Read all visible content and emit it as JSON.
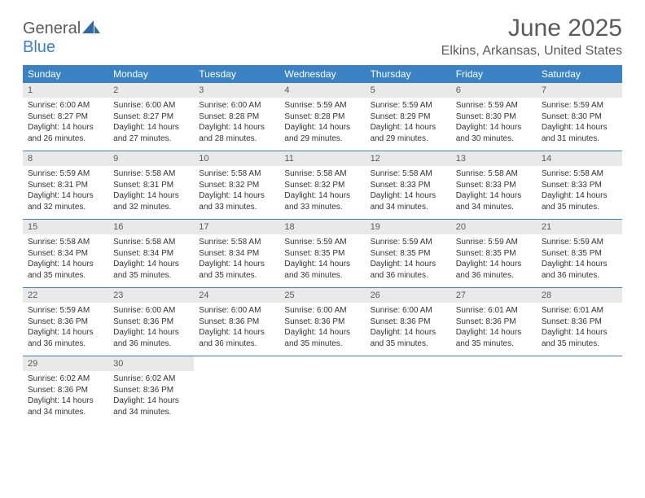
{
  "brand": {
    "part1": "General",
    "part2": "Blue"
  },
  "title": "June 2025",
  "location": "Elkins, Arkansas, United States",
  "colors": {
    "header_bg": "#3b82c4",
    "header_fg": "#ffffff",
    "daynum_bg": "#e9e9e9",
    "text_muted": "#5a5a5a",
    "text_body": "#333333",
    "page_bg": "#ffffff",
    "rule": "#3b82c4"
  },
  "typography": {
    "title_fontsize_pt": 22,
    "location_fontsize_pt": 12,
    "dow_fontsize_pt": 9,
    "daynum_fontsize_pt": 8,
    "body_fontsize_pt": 7.5,
    "font_family": "Arial"
  },
  "layout": {
    "columns": 7,
    "weeks": 5,
    "cell_width_pct": 14.28
  },
  "dow": [
    "Sunday",
    "Monday",
    "Tuesday",
    "Wednesday",
    "Thursday",
    "Friday",
    "Saturday"
  ],
  "weeks": [
    [
      {
        "n": "1",
        "sr": "Sunrise: 6:00 AM",
        "ss": "Sunset: 8:27 PM",
        "d1": "Daylight: 14 hours",
        "d2": "and 26 minutes."
      },
      {
        "n": "2",
        "sr": "Sunrise: 6:00 AM",
        "ss": "Sunset: 8:27 PM",
        "d1": "Daylight: 14 hours",
        "d2": "and 27 minutes."
      },
      {
        "n": "3",
        "sr": "Sunrise: 6:00 AM",
        "ss": "Sunset: 8:28 PM",
        "d1": "Daylight: 14 hours",
        "d2": "and 28 minutes."
      },
      {
        "n": "4",
        "sr": "Sunrise: 5:59 AM",
        "ss": "Sunset: 8:28 PM",
        "d1": "Daylight: 14 hours",
        "d2": "and 29 minutes."
      },
      {
        "n": "5",
        "sr": "Sunrise: 5:59 AM",
        "ss": "Sunset: 8:29 PM",
        "d1": "Daylight: 14 hours",
        "d2": "and 29 minutes."
      },
      {
        "n": "6",
        "sr": "Sunrise: 5:59 AM",
        "ss": "Sunset: 8:30 PM",
        "d1": "Daylight: 14 hours",
        "d2": "and 30 minutes."
      },
      {
        "n": "7",
        "sr": "Sunrise: 5:59 AM",
        "ss": "Sunset: 8:30 PM",
        "d1": "Daylight: 14 hours",
        "d2": "and 31 minutes."
      }
    ],
    [
      {
        "n": "8",
        "sr": "Sunrise: 5:59 AM",
        "ss": "Sunset: 8:31 PM",
        "d1": "Daylight: 14 hours",
        "d2": "and 32 minutes."
      },
      {
        "n": "9",
        "sr": "Sunrise: 5:58 AM",
        "ss": "Sunset: 8:31 PM",
        "d1": "Daylight: 14 hours",
        "d2": "and 32 minutes."
      },
      {
        "n": "10",
        "sr": "Sunrise: 5:58 AM",
        "ss": "Sunset: 8:32 PM",
        "d1": "Daylight: 14 hours",
        "d2": "and 33 minutes."
      },
      {
        "n": "11",
        "sr": "Sunrise: 5:58 AM",
        "ss": "Sunset: 8:32 PM",
        "d1": "Daylight: 14 hours",
        "d2": "and 33 minutes."
      },
      {
        "n": "12",
        "sr": "Sunrise: 5:58 AM",
        "ss": "Sunset: 8:33 PM",
        "d1": "Daylight: 14 hours",
        "d2": "and 34 minutes."
      },
      {
        "n": "13",
        "sr": "Sunrise: 5:58 AM",
        "ss": "Sunset: 8:33 PM",
        "d1": "Daylight: 14 hours",
        "d2": "and 34 minutes."
      },
      {
        "n": "14",
        "sr": "Sunrise: 5:58 AM",
        "ss": "Sunset: 8:33 PM",
        "d1": "Daylight: 14 hours",
        "d2": "and 35 minutes."
      }
    ],
    [
      {
        "n": "15",
        "sr": "Sunrise: 5:58 AM",
        "ss": "Sunset: 8:34 PM",
        "d1": "Daylight: 14 hours",
        "d2": "and 35 minutes."
      },
      {
        "n": "16",
        "sr": "Sunrise: 5:58 AM",
        "ss": "Sunset: 8:34 PM",
        "d1": "Daylight: 14 hours",
        "d2": "and 35 minutes."
      },
      {
        "n": "17",
        "sr": "Sunrise: 5:58 AM",
        "ss": "Sunset: 8:34 PM",
        "d1": "Daylight: 14 hours",
        "d2": "and 35 minutes."
      },
      {
        "n": "18",
        "sr": "Sunrise: 5:59 AM",
        "ss": "Sunset: 8:35 PM",
        "d1": "Daylight: 14 hours",
        "d2": "and 36 minutes."
      },
      {
        "n": "19",
        "sr": "Sunrise: 5:59 AM",
        "ss": "Sunset: 8:35 PM",
        "d1": "Daylight: 14 hours",
        "d2": "and 36 minutes."
      },
      {
        "n": "20",
        "sr": "Sunrise: 5:59 AM",
        "ss": "Sunset: 8:35 PM",
        "d1": "Daylight: 14 hours",
        "d2": "and 36 minutes."
      },
      {
        "n": "21",
        "sr": "Sunrise: 5:59 AM",
        "ss": "Sunset: 8:35 PM",
        "d1": "Daylight: 14 hours",
        "d2": "and 36 minutes."
      }
    ],
    [
      {
        "n": "22",
        "sr": "Sunrise: 5:59 AM",
        "ss": "Sunset: 8:36 PM",
        "d1": "Daylight: 14 hours",
        "d2": "and 36 minutes."
      },
      {
        "n": "23",
        "sr": "Sunrise: 6:00 AM",
        "ss": "Sunset: 8:36 PM",
        "d1": "Daylight: 14 hours",
        "d2": "and 36 minutes."
      },
      {
        "n": "24",
        "sr": "Sunrise: 6:00 AM",
        "ss": "Sunset: 8:36 PM",
        "d1": "Daylight: 14 hours",
        "d2": "and 36 minutes."
      },
      {
        "n": "25",
        "sr": "Sunrise: 6:00 AM",
        "ss": "Sunset: 8:36 PM",
        "d1": "Daylight: 14 hours",
        "d2": "and 35 minutes."
      },
      {
        "n": "26",
        "sr": "Sunrise: 6:00 AM",
        "ss": "Sunset: 8:36 PM",
        "d1": "Daylight: 14 hours",
        "d2": "and 35 minutes."
      },
      {
        "n": "27",
        "sr": "Sunrise: 6:01 AM",
        "ss": "Sunset: 8:36 PM",
        "d1": "Daylight: 14 hours",
        "d2": "and 35 minutes."
      },
      {
        "n": "28",
        "sr": "Sunrise: 6:01 AM",
        "ss": "Sunset: 8:36 PM",
        "d1": "Daylight: 14 hours",
        "d2": "and 35 minutes."
      }
    ],
    [
      {
        "n": "29",
        "sr": "Sunrise: 6:02 AM",
        "ss": "Sunset: 8:36 PM",
        "d1": "Daylight: 14 hours",
        "d2": "and 34 minutes."
      },
      {
        "n": "30",
        "sr": "Sunrise: 6:02 AM",
        "ss": "Sunset: 8:36 PM",
        "d1": "Daylight: 14 hours",
        "d2": "and 34 minutes."
      },
      null,
      null,
      null,
      null,
      null
    ]
  ]
}
